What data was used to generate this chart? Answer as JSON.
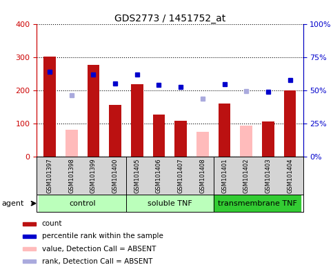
{
  "title": "GDS2773 / 1451752_at",
  "samples": [
    "GSM101397",
    "GSM101398",
    "GSM101399",
    "GSM101400",
    "GSM101405",
    "GSM101406",
    "GSM101407",
    "GSM101408",
    "GSM101401",
    "GSM101402",
    "GSM101403",
    "GSM101404"
  ],
  "bar_values": [
    302,
    null,
    277,
    155,
    218,
    127,
    108,
    null,
    160,
    null,
    105,
    200
  ],
  "bar_absent_values": [
    null,
    80,
    null,
    null,
    null,
    null,
    null,
    75,
    null,
    92,
    null,
    null
  ],
  "bar_color_present": "#bb1111",
  "bar_color_absent": "#ffbbbb",
  "rank_values": [
    255,
    185,
    248,
    220,
    248,
    215,
    210,
    175,
    218,
    198,
    194,
    230
  ],
  "rank_absent": [
    false,
    true,
    false,
    false,
    false,
    false,
    false,
    true,
    false,
    true,
    false,
    false
  ],
  "rank_color_present": "#0000cc",
  "rank_color_absent": "#aaaadd",
  "yticks_left_labels": [
    "0",
    "100",
    "200",
    "300",
    "400"
  ],
  "yticks_right_labels": [
    "0%",
    "25%",
    "50%",
    "75%",
    "100%"
  ],
  "agent_label": "agent",
  "group1_color": "#bbffbb",
  "group2_color": "#bbffbb",
  "group3_color": "#33cc33",
  "legend_items": [
    {
      "color": "#bb1111",
      "label": "count"
    },
    {
      "color": "#0000cc",
      "label": "percentile rank within the sample"
    },
    {
      "color": "#ffbbbb",
      "label": "value, Detection Call = ABSENT"
    },
    {
      "color": "#aaaadd",
      "label": "rank, Detection Call = ABSENT"
    }
  ]
}
